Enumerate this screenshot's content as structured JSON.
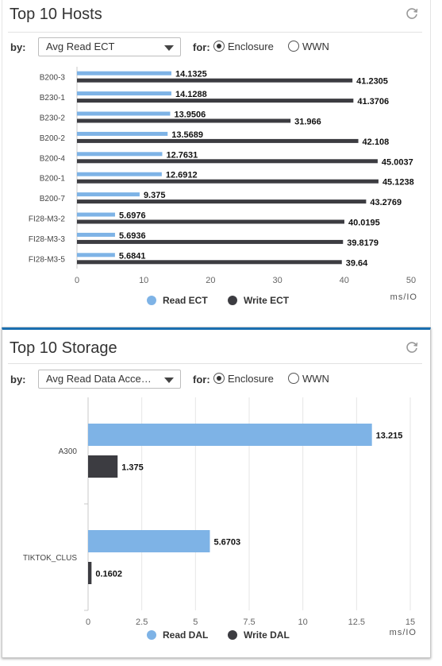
{
  "colors": {
    "read": "#7eb3e6",
    "write": "#3c3c41",
    "accent": "#1a6fb0"
  },
  "icons": {
    "refresh": "refresh-icon",
    "caret": "chevron-down-icon"
  },
  "hosts_panel": {
    "title": "Top 10 Hosts",
    "by_label": "by:",
    "metric_select": "Avg Read ECT",
    "for_label": "for:",
    "radio_enclosure": "Enclosure",
    "radio_wwn": "WWN",
    "selected_radio": "Enclosure"
  },
  "storage_panel": {
    "title": "Top 10 Storage",
    "by_label": "by:",
    "metric_select": "Avg Read Data Acce…",
    "for_label": "for:",
    "radio_enclosure": "Enclosure",
    "radio_wwn": "WWN",
    "selected_radio": "Enclosure"
  },
  "chart_data": [
    {
      "type": "bar",
      "orientation": "horizontal",
      "categories": [
        "B200-3",
        "B230-1",
        "B230-2",
        "B200-2",
        "B200-4",
        "B200-1",
        "B200-7",
        "FI28-M3-2",
        "FI28-M3-3",
        "FI28-M3-5"
      ],
      "series": [
        {
          "name": "Read ECT",
          "values": [
            14.1325,
            14.1288,
            13.9506,
            13.5689,
            12.7631,
            12.6912,
            9.375,
            5.6976,
            5.6936,
            5.6841
          ]
        },
        {
          "name": "Write ECT",
          "values": [
            41.2305,
            41.3706,
            31.966,
            42.108,
            45.0037,
            45.1238,
            43.2769,
            40.0195,
            39.8179,
            39.64
          ]
        }
      ],
      "value_labels": {
        "Read ECT": [
          "14.1325",
          "14.1288",
          "13.9506",
          "13.5689",
          "12.7631",
          "12.6912",
          "9.375",
          "5.6976",
          "5.6936",
          "5.6841"
        ],
        "Write ECT": [
          "41.2305",
          "41.3706",
          "31.966",
          "42.108",
          "45.0037",
          "45.1238",
          "43.2769",
          "40.0195",
          "39.8179",
          "39.64"
        ]
      },
      "xlim": [
        0,
        50
      ],
      "xticks": [
        "0",
        "10",
        "20",
        "30",
        "40",
        "50"
      ],
      "unit": "ms/IO",
      "grid": false,
      "legend_position": "bottom"
    },
    {
      "type": "bar",
      "orientation": "horizontal",
      "categories": [
        "A300",
        "TIKTOK_CLUS"
      ],
      "series": [
        {
          "name": "Read DAL",
          "values": [
            13.215,
            5.6703
          ]
        },
        {
          "name": "Write DAL",
          "values": [
            1.375,
            0.1602
          ]
        }
      ],
      "value_labels": {
        "Read DAL": [
          "13.215",
          "5.6703"
        ],
        "Write DAL": [
          "1.375",
          "0.1602"
        ]
      },
      "xlim": [
        0,
        15
      ],
      "xticks": [
        "0",
        "2.5",
        "5",
        "7.5",
        "10",
        "12.5",
        "15"
      ],
      "unit": "ms/IO",
      "grid": true,
      "legend_position": "bottom"
    }
  ]
}
